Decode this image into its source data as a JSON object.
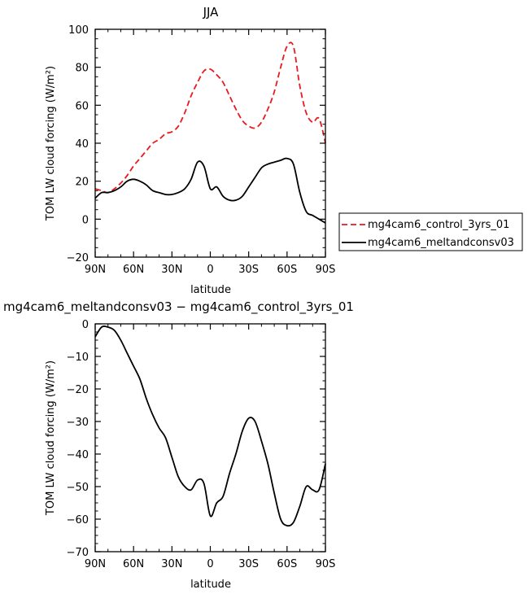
{
  "chart_data": [
    {
      "type": "line",
      "title": "JJA",
      "xlabel": "latitude",
      "ylabel": "TOM LW cloud forcing (W/m²)",
      "xlim": [
        90,
        -90
      ],
      "ylim": [
        -20,
        100
      ],
      "x_ticks": [
        "90N",
        "60N",
        "30N",
        "0",
        "30S",
        "60S",
        "90S"
      ],
      "y_ticks": [
        "−20",
        "0",
        "20",
        "40",
        "60",
        "80",
        "100"
      ],
      "legend_position": "right",
      "series": [
        {
          "name": "mg4cam6_control_3yrs_01",
          "color": "#e8191f",
          "dash": "dashed",
          "x": [
            90,
            85,
            80,
            75,
            70,
            65,
            60,
            55,
            50,
            45,
            40,
            35,
            30,
            25,
            20,
            15,
            10,
            5,
            0,
            -5,
            -10,
            -15,
            -20,
            -25,
            -30,
            -35,
            -40,
            -45,
            -50,
            -55,
            -60,
            -65,
            -70,
            -75,
            -80,
            -85,
            -90
          ],
          "y": [
            16,
            15,
            14,
            16,
            19,
            23,
            28,
            32,
            36,
            40,
            42,
            45,
            46,
            49,
            56,
            65,
            72,
            78,
            79,
            76,
            72,
            65,
            58,
            52,
            49,
            48,
            51,
            58,
            67,
            80,
            91,
            91,
            70,
            56,
            51,
            53,
            40
          ]
        },
        {
          "name": "mg4cam6_meltandconsv03",
          "color": "#000000",
          "dash": "solid",
          "x": [
            90,
            85,
            80,
            75,
            70,
            65,
            60,
            55,
            50,
            45,
            40,
            35,
            30,
            25,
            20,
            15,
            10,
            5,
            0,
            -5,
            -10,
            -15,
            -20,
            -25,
            -30,
            -35,
            -40,
            -45,
            -50,
            -55,
            -60,
            -65,
            -70,
            -75,
            -80,
            -85,
            -90
          ],
          "y": [
            11,
            14,
            14,
            15,
            17,
            20,
            21,
            20,
            18,
            15,
            14,
            13,
            13,
            14,
            16,
            21,
            30,
            28,
            16,
            17,
            12,
            10,
            10,
            12,
            17,
            22,
            27,
            29,
            30,
            31,
            32,
            29,
            14,
            4,
            2,
            0,
            -2
          ]
        }
      ]
    },
    {
      "type": "line",
      "title": "mg4cam6_meltandconsv03 − mg4cam6_control_3yrs_01",
      "xlabel": "latitude",
      "ylabel": "TOM LW cloud forcing (W/m²)",
      "xlim": [
        90,
        -90
      ],
      "ylim": [
        -70,
        0
      ],
      "x_ticks": [
        "90N",
        "60N",
        "30N",
        "0",
        "30S",
        "60S",
        "90S"
      ],
      "y_ticks": [
        "−70",
        "−60",
        "−50",
        "−40",
        "−30",
        "−20",
        "−10",
        "0"
      ],
      "series": [
        {
          "color": "#000000",
          "dash": "solid",
          "x": [
            90,
            85,
            80,
            75,
            70,
            65,
            60,
            55,
            50,
            45,
            40,
            35,
            30,
            25,
            20,
            15,
            10,
            5,
            0,
            -5,
            -10,
            -15,
            -20,
            -25,
            -30,
            -35,
            -40,
            -45,
            -50,
            -55,
            -60,
            -65,
            -70,
            -75,
            -80,
            -85,
            -90
          ],
          "y": [
            -4,
            -1,
            -1,
            -2,
            -5,
            -9,
            -13,
            -17,
            -23,
            -28,
            -32,
            -35,
            -41,
            -47,
            -50,
            -51,
            -48,
            -49,
            -59,
            -55,
            -53,
            -46,
            -40,
            -33,
            -29,
            -30,
            -36,
            -43,
            -52,
            -60,
            -62,
            -61,
            -56,
            -50,
            -51,
            -51,
            -43
          ]
        }
      ]
    }
  ]
}
